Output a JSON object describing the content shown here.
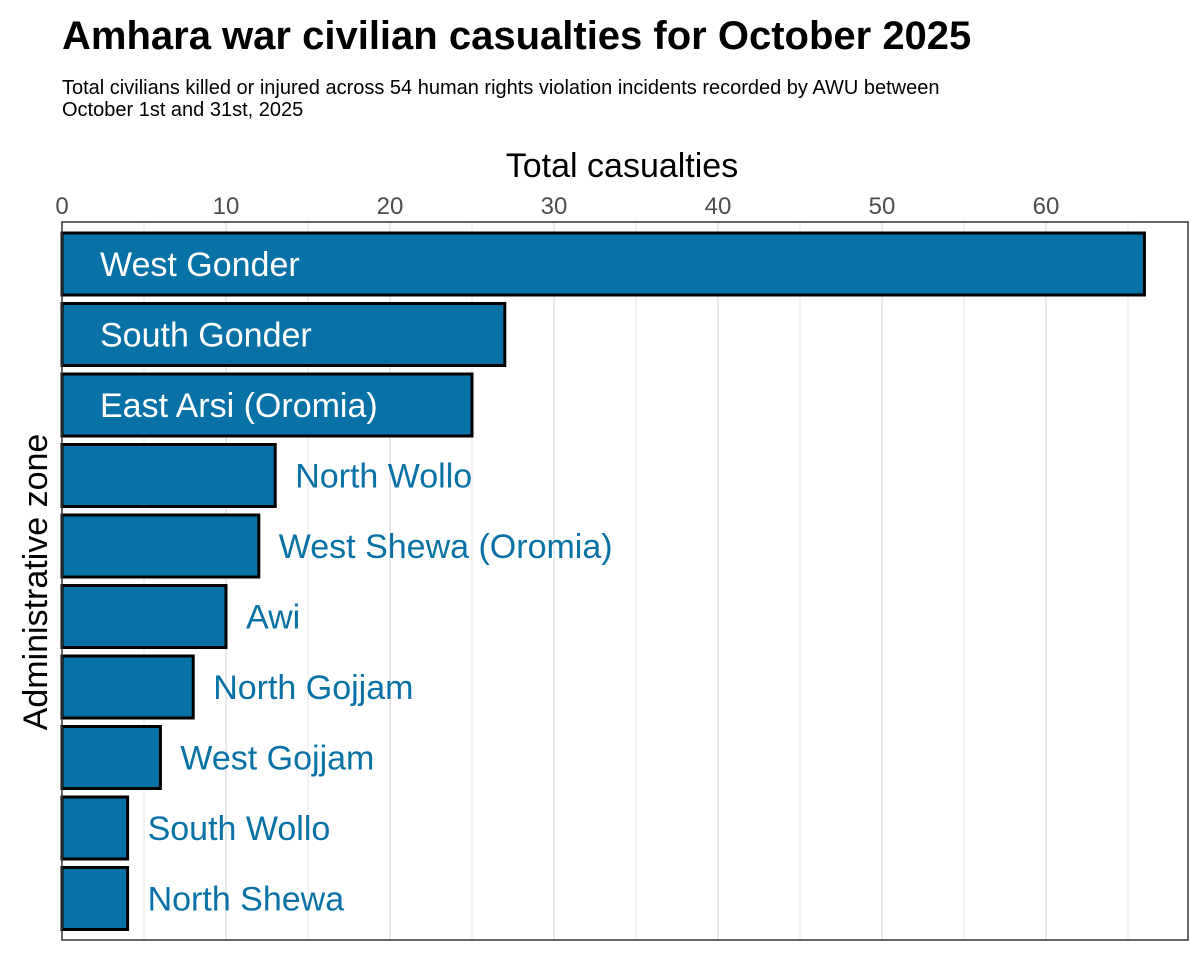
{
  "colors": {
    "bar_fill": "#0872a6",
    "bar_stroke": "#000000",
    "label_inside": "#ffffff",
    "label_outside": "#0872a6",
    "grid": "#e5e5e5",
    "panel_border": "#333333",
    "tick_text": "#4d4d4d"
  },
  "chart_data": {
    "type": "bar",
    "orientation": "horizontal",
    "title": "Amhara war civilian casualties for October 2025",
    "subtitle": "Total civilians killed or injured across 54 human rights violation incidents recorded by AWU between\n October 1st and 31st, 2025",
    "xlabel": "Total casualties",
    "ylabel": "Administrative zone",
    "x_axis_position": "top",
    "xlim": [
      0,
      68
    ],
    "xticks": [
      0,
      10,
      20,
      30,
      40,
      50,
      60
    ],
    "grid": true,
    "legend": "none",
    "categories": [
      "West Gonder",
      "South Gonder",
      "East Arsi (Oromia)",
      "North Wollo",
      "West Shewa (Oromia)",
      "Awi",
      "North Gojjam",
      "West Gojjam",
      "South Wollo",
      "North Shewa"
    ],
    "values": [
      66,
      27,
      25,
      13,
      12,
      10,
      8,
      6,
      4,
      4
    ],
    "label_inside": [
      true,
      true,
      true,
      false,
      false,
      false,
      false,
      false,
      false,
      false
    ]
  }
}
